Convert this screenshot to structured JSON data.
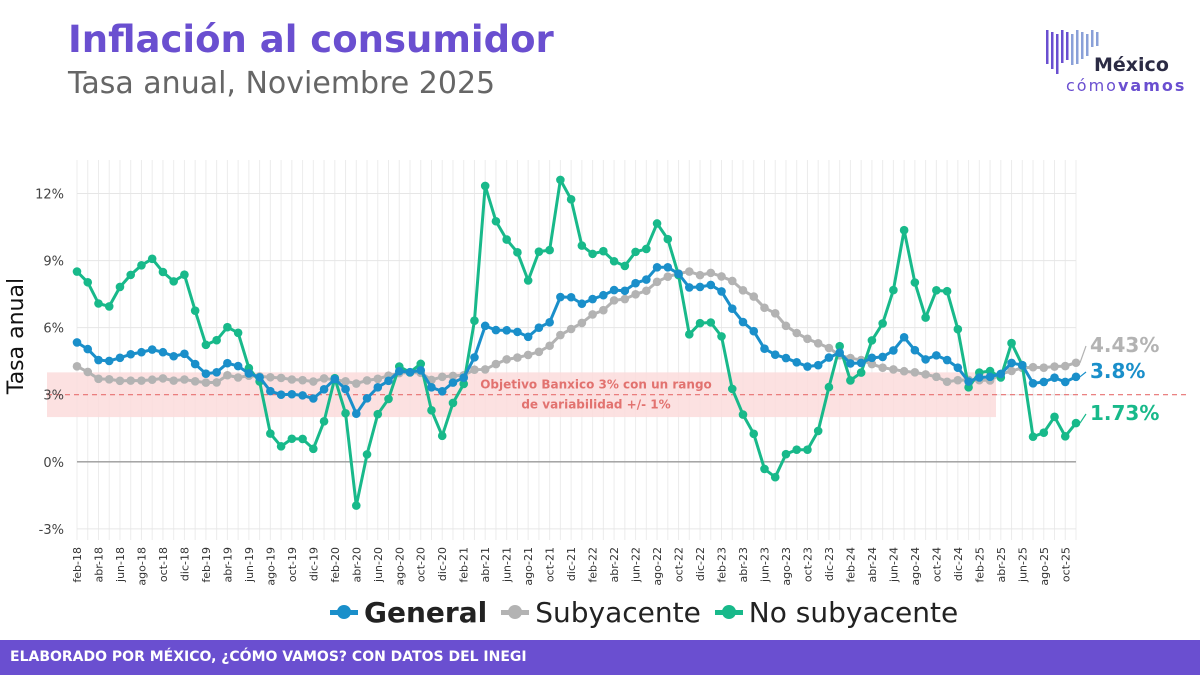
{
  "header": {
    "title": "Inflación al consumidor",
    "subtitle": "Tasa anual, Noviembre 2025"
  },
  "logo": {
    "line1": "México",
    "line2_a": "cómo",
    "line2_b": "vamos"
  },
  "footer": {
    "text": "ELABORADO POR MÉXICO, ¿CÓMO VAMOS? CON DATOS DEL INEGI"
  },
  "colors": {
    "general": "#1a8fca",
    "subyacente": "#b3b3b3",
    "no_subyacente": "#18b98a",
    "band": "#fbdcdc",
    "target_line": "#e77070",
    "brand": "#6a4fd0"
  },
  "chart_data": {
    "type": "line",
    "ylabel": "Tasa anual",
    "ylim": [
      -3.5,
      13.5
    ],
    "yticks": [
      -3,
      0,
      3,
      6,
      9,
      12
    ],
    "ytick_labels": [
      "-3%",
      "0%",
      "3%",
      "6%",
      "9%",
      "12%"
    ],
    "grid": true,
    "legend_position": "bottom",
    "band": {
      "low": 2,
      "high": 4
    },
    "target": 3,
    "annotation": "Objetivo Banxico 3% con un rango de variabilidad +/- 1%",
    "annotation_lines": [
      "Objetivo Banxico 3% con un rango",
      "de variabilidad +/- 1%"
    ],
    "categories": [
      "feb-18",
      "mar-18",
      "abr-18",
      "may-18",
      "jun-18",
      "jul-18",
      "ago-18",
      "sep-18",
      "oct-18",
      "nov-18",
      "dic-18",
      "ene-19",
      "feb-19",
      "mar-19",
      "abr-19",
      "may-19",
      "jun-19",
      "jul-19",
      "ago-19",
      "sep-19",
      "oct-19",
      "nov-19",
      "dic-19",
      "ene-20",
      "feb-20",
      "mar-20",
      "abr-20",
      "may-20",
      "jun-20",
      "jul-20",
      "ago-20",
      "sep-20",
      "oct-20",
      "nov-20",
      "dic-20",
      "ene-21",
      "feb-21",
      "mar-21",
      "abr-21",
      "may-21",
      "jun-21",
      "jul-21",
      "ago-21",
      "sep-21",
      "oct-21",
      "nov-21",
      "dic-21",
      "ene-22",
      "feb-22",
      "mar-22",
      "abr-22",
      "may-22",
      "jun-22",
      "jul-22",
      "ago-22",
      "sep-22",
      "oct-22",
      "nov-22",
      "dic-22",
      "ene-23",
      "feb-23",
      "mar-23",
      "abr-23",
      "may-23",
      "jun-23",
      "jul-23",
      "ago-23",
      "sep-23",
      "oct-23",
      "nov-23",
      "dic-23",
      "ene-24",
      "feb-24",
      "mar-24",
      "abr-24",
      "may-24",
      "jun-24",
      "jul-24",
      "ago-24",
      "sep-24",
      "oct-24",
      "nov-24",
      "dic-24",
      "ene-25",
      "feb-25",
      "mar-25",
      "abr-25",
      "may-25",
      "jun-25",
      "jul-25",
      "ago-25",
      "sep-25",
      "oct-25",
      "nov-25"
    ],
    "tick_labels_every_other": [
      "feb-18",
      "abr-18",
      "jun-18",
      "ago-18",
      "oct-18",
      "dic-18",
      "feb-19",
      "abr-19",
      "jun-19",
      "ago-19",
      "oct-19",
      "dic-19",
      "feb-20",
      "abr-20",
      "jun-20",
      "ago-20",
      "oct-20",
      "dic-20",
      "feb-21",
      "abr-21",
      "jun-21",
      "ago-21",
      "oct-21",
      "dic-21",
      "feb-22",
      "abr-22",
      "jun-22",
      "ago-22",
      "oct-22",
      "dic-22",
      "feb-23",
      "abr-23",
      "jun-23",
      "ago-23",
      "oct-23",
      "dic-23",
      "feb-24",
      "abr-24",
      "jun-24",
      "ago-24",
      "oct-24",
      "dic-24",
      "feb-25",
      "abr-25",
      "jun-25",
      "ago-25",
      "oct-25"
    ],
    "series": [
      {
        "name": "General",
        "key": "general",
        "end_label": "3.8%",
        "values": [
          5.34,
          5.04,
          4.55,
          4.51,
          4.65,
          4.81,
          4.9,
          5.02,
          4.9,
          4.72,
          4.83,
          4.37,
          3.94,
          4.0,
          4.41,
          4.28,
          3.95,
          3.78,
          3.16,
          3.0,
          3.02,
          2.97,
          2.83,
          3.24,
          3.7,
          3.25,
          2.15,
          2.84,
          3.33,
          3.62,
          4.05,
          4.01,
          4.09,
          3.33,
          3.15,
          3.54,
          3.76,
          4.67,
          6.08,
          5.89,
          5.88,
          5.81,
          5.59,
          6.0,
          6.24,
          7.37,
          7.36,
          7.07,
          7.28,
          7.45,
          7.68,
          7.65,
          7.99,
          8.15,
          8.7,
          8.7,
          8.41,
          7.8,
          7.82,
          7.91,
          7.62,
          6.85,
          6.25,
          5.84,
          5.06,
          4.79,
          4.64,
          4.45,
          4.26,
          4.32,
          4.66,
          4.88,
          4.4,
          4.42,
          4.65,
          4.69,
          4.98,
          5.57,
          4.99,
          4.58,
          4.76,
          4.55,
          4.21,
          3.59,
          3.77,
          3.8,
          3.93,
          4.42,
          4.32,
          3.51,
          3.57,
          3.76,
          3.57,
          3.8
        ]
      },
      {
        "name": "Subyacente",
        "key": "subyacente",
        "end_label": "4.43%",
        "values": [
          4.27,
          4.02,
          3.71,
          3.69,
          3.62,
          3.63,
          3.63,
          3.67,
          3.73,
          3.63,
          3.68,
          3.6,
          3.54,
          3.55,
          3.87,
          3.77,
          3.85,
          3.82,
          3.78,
          3.75,
          3.68,
          3.65,
          3.59,
          3.73,
          3.66,
          3.6,
          3.5,
          3.64,
          3.71,
          3.85,
          3.97,
          3.99,
          3.98,
          3.66,
          3.8,
          3.84,
          3.87,
          4.12,
          4.13,
          4.37,
          4.58,
          4.66,
          4.78,
          4.92,
          5.19,
          5.67,
          5.94,
          6.21,
          6.59,
          6.78,
          7.22,
          7.28,
          7.49,
          7.65,
          8.05,
          8.28,
          8.42,
          8.51,
          8.35,
          8.45,
          8.29,
          8.09,
          7.67,
          7.39,
          6.89,
          6.64,
          6.08,
          5.76,
          5.5,
          5.3,
          5.09,
          4.76,
          4.64,
          4.55,
          4.37,
          4.21,
          4.13,
          4.05,
          4.0,
          3.91,
          3.8,
          3.58,
          3.65,
          3.66,
          3.65,
          3.64,
          3.93,
          4.06,
          4.2,
          4.23,
          4.21,
          4.26,
          4.28,
          4.43
        ]
      },
      {
        "name": "No subyacente",
        "key": "no_subyacente",
        "end_label": "1.73%",
        "values": [
          8.51,
          8.03,
          7.08,
          6.95,
          7.82,
          8.36,
          8.79,
          9.08,
          8.49,
          8.07,
          8.37,
          6.76,
          5.23,
          5.44,
          6.02,
          5.77,
          4.19,
          3.59,
          1.26,
          0.69,
          1.03,
          1.02,
          0.58,
          1.81,
          3.74,
          2.17,
          -1.96,
          0.33,
          2.13,
          2.81,
          4.26,
          4.0,
          4.38,
          2.3,
          1.16,
          2.63,
          3.48,
          6.31,
          12.34,
          10.76,
          9.94,
          9.37,
          8.11,
          9.4,
          9.47,
          12.61,
          11.74,
          9.67,
          9.3,
          9.42,
          8.97,
          8.76,
          9.39,
          9.52,
          10.66,
          9.96,
          8.35,
          5.7,
          6.2,
          6.23,
          5.61,
          3.26,
          2.11,
          1.25,
          -0.32,
          -0.69,
          0.34,
          0.54,
          0.54,
          1.38,
          3.34,
          5.17,
          3.64,
          3.99,
          5.43,
          6.19,
          7.68,
          10.36,
          8.02,
          6.45,
          7.67,
          7.63,
          5.93,
          3.33,
          3.99,
          4.06,
          3.77,
          5.31,
          4.32,
          1.12,
          1.3,
          2.01,
          1.14,
          1.73
        ]
      }
    ]
  }
}
